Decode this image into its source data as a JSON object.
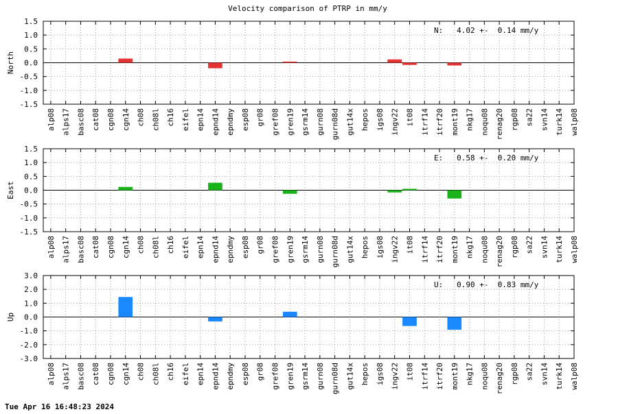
{
  "timestamp": "Tue Apr 16 16:48:23 2024",
  "chart_data": [
    {
      "type": "bar",
      "title": "Velocity comparison of PTRP in mm/y",
      "ylabel": "North",
      "ylim": [
        -1.5,
        1.5
      ],
      "yticks": [
        "1.5",
        "1.0",
        "0.5",
        "0.0",
        "-0.5",
        "-1.0",
        "-1.5"
      ],
      "grid": true,
      "color": "#e33333",
      "annotation": "N:   4.02 +-  0.14 mm/y",
      "categories": [
        "alp08",
        "alps17",
        "basc08",
        "cat08",
        "cgn08",
        "cgn14",
        "ch08",
        "ch08l",
        "ch16",
        "eifel",
        "epn14",
        "epnd14",
        "epndmy",
        "esp08",
        "gr08",
        "gref08",
        "gren19",
        "gsrm14",
        "gurn08",
        "gurn08d",
        "gut14x",
        "hepos",
        "igs08",
        "ingv22",
        "it08",
        "itrf14",
        "itrf20",
        "mont19",
        "nkg17",
        "noqu08",
        "renag20",
        "rgp08",
        "sa22",
        "svn14",
        "turk14",
        "walp08"
      ],
      "values": [
        0,
        0,
        0,
        0,
        0,
        0.15,
        0,
        0,
        0,
        0,
        0,
        -0.2,
        0,
        0,
        0,
        0,
        0.04,
        0,
        0,
        0,
        0,
        0,
        0,
        0.12,
        -0.08,
        0,
        0,
        -0.1,
        0,
        0,
        0,
        0,
        0,
        0,
        0,
        0
      ]
    },
    {
      "type": "bar",
      "ylabel": "East",
      "ylim": [
        -1.5,
        1.5
      ],
      "yticks": [
        "1.5",
        "1.0",
        "0.5",
        "0.0",
        "-0.5",
        "-1.0",
        "-1.5"
      ],
      "grid": true,
      "color": "#1ab31a",
      "annotation": "E:   0.58 +-  0.20 mm/y",
      "categories": [
        "alp08",
        "alps17",
        "basc08",
        "cat08",
        "cgn08",
        "cgn14",
        "ch08",
        "ch08l",
        "ch16",
        "eifel",
        "epn14",
        "epnd14",
        "epndmy",
        "esp08",
        "gr08",
        "gref08",
        "gren19",
        "gsrm14",
        "gurn08",
        "gurn08d",
        "gut14x",
        "hepos",
        "igs08",
        "ingv22",
        "it08",
        "itrf14",
        "itrf20",
        "mont19",
        "nkg17",
        "noqu08",
        "renag20",
        "rgp08",
        "sa22",
        "svn14",
        "turk14",
        "walp08"
      ],
      "values": [
        0,
        0,
        0,
        0,
        0,
        0.12,
        0,
        0,
        0,
        0,
        0,
        0.27,
        0,
        0,
        0,
        0,
        -0.13,
        0,
        0,
        0,
        0,
        0,
        0,
        -0.08,
        0.05,
        0,
        0,
        -0.3,
        0,
        0,
        0,
        0,
        0,
        0,
        0,
        0
      ]
    },
    {
      "type": "bar",
      "ylabel": "Up",
      "ylim": [
        -3.0,
        3.0
      ],
      "yticks": [
        "3.0",
        "2.0",
        "1.0",
        "0.0",
        "-1.0",
        "-2.0",
        "-3.0"
      ],
      "grid": true,
      "color": "#1a88ff",
      "annotation": "U:   0.90 +-  0.83 mm/y",
      "categories": [
        "alp08",
        "alps17",
        "basc08",
        "cat08",
        "cgn08",
        "cgn14",
        "ch08",
        "ch08l",
        "ch16",
        "eifel",
        "epn14",
        "epnd14",
        "epndmy",
        "esp08",
        "gr08",
        "gref08",
        "gren19",
        "gsrm14",
        "gurn08",
        "gurn08d",
        "gut14x",
        "hepos",
        "igs08",
        "ingv22",
        "it08",
        "itrf14",
        "itrf20",
        "mont19",
        "nkg17",
        "noqu08",
        "renag20",
        "rgp08",
        "sa22",
        "svn14",
        "turk14",
        "walp08"
      ],
      "values": [
        0,
        0,
        0,
        0,
        0,
        1.45,
        0,
        0,
        0,
        0,
        0,
        -0.32,
        0,
        0,
        0,
        0,
        0.38,
        0,
        0,
        0,
        0,
        0,
        0,
        0,
        -0.65,
        0,
        0,
        -0.92,
        0,
        0,
        0,
        0,
        0,
        0,
        0,
        0
      ]
    }
  ]
}
